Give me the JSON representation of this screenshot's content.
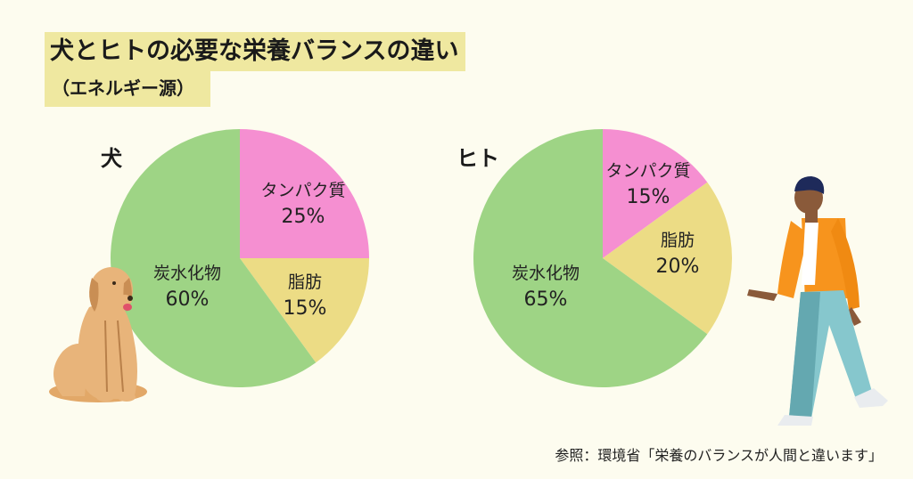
{
  "title": {
    "line1": "犬とヒトの必要な栄養バランスの違い",
    "line2": "（エネルギー源）"
  },
  "colors": {
    "background": "#fdfcef",
    "title_band": "#efe8a0",
    "protein": "#f58fd1",
    "fat": "#ecdc85",
    "carbohydrate": "#9ed485"
  },
  "chart_data": [
    {
      "type": "pie",
      "title": "犬",
      "slices": [
        {
          "label": "タンパク質",
          "value": 25,
          "pct_label": "25%",
          "color": "#f58fd1"
        },
        {
          "label": "脂肪",
          "value": 15,
          "pct_label": "15%",
          "color": "#ecdc85"
        },
        {
          "label": "炭水化物",
          "value": 60,
          "pct_label": "60%",
          "color": "#9ed485"
        }
      ]
    },
    {
      "type": "pie",
      "title": "ヒト",
      "slices": [
        {
          "label": "タンパク質",
          "value": 15,
          "pct_label": "15%",
          "color": "#f58fd1"
        },
        {
          "label": "脂肪",
          "value": 20,
          "pct_label": "20%",
          "color": "#ecdc85"
        },
        {
          "label": "炭水化物",
          "value": 65,
          "pct_label": "65%",
          "color": "#9ed485"
        }
      ]
    }
  ],
  "footnote": "参照：環境省「栄養のバランスが人間と違います」",
  "illustrations": [
    "dog-illustration",
    "person-walking-illustration"
  ]
}
